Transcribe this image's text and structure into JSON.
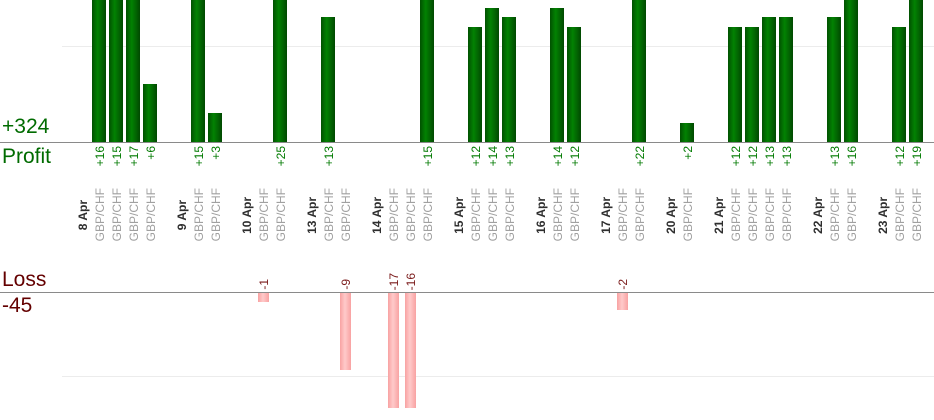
{
  "chart_data": {
    "type": "bar",
    "layout": "dual-section daily trade results: profit bars above upper axis, loss bars below lower axis, shared date/instrument category band, gridlines on",
    "sections": [
      {
        "id": "profit",
        "label": "Profit",
        "total_label": "+324",
        "total_value": 324,
        "bar_color": "#028202",
        "text_color": "#006b00",
        "gridline_value_estimate": 10
      },
      {
        "id": "loss",
        "label": "Loss",
        "total_label": "-45",
        "total_value": -45,
        "bar_color": "#ffcaca",
        "text_color": "#640000",
        "gridline_value_estimate": -10
      }
    ],
    "groups": [
      {
        "date": "8 Apr",
        "trades": [
          {
            "instrument": "GBP/CHF",
            "value": 16,
            "label": "+16"
          },
          {
            "instrument": "GBP/CHF",
            "value": 15,
            "label": "+15"
          },
          {
            "instrument": "GBP/CHF",
            "value": 17,
            "label": "+17"
          },
          {
            "instrument": "GBP/CHF",
            "value": 6,
            "label": "+6"
          }
        ]
      },
      {
        "date": "9 Apr",
        "trades": [
          {
            "instrument": "GBP/CHF",
            "value": 15,
            "label": "+15"
          },
          {
            "instrument": "GBP/CHF",
            "value": 3,
            "label": "+3"
          }
        ]
      },
      {
        "date": "10 Apr",
        "trades": [
          {
            "instrument": "GBP/CHF",
            "value": -1,
            "label": "-1"
          },
          {
            "instrument": "GBP/CHF",
            "value": 25,
            "label": "+25"
          }
        ]
      },
      {
        "date": "13 Apr",
        "trades": [
          {
            "instrument": "GBP/CHF",
            "value": 13,
            "label": "+13"
          },
          {
            "instrument": "GBP/CHF",
            "value": -9,
            "label": "-9"
          }
        ]
      },
      {
        "date": "14 Apr",
        "trades": [
          {
            "instrument": "GBP/CHF",
            "value": -17,
            "label": "-17"
          },
          {
            "instrument": "GBP/CHF",
            "value": -16,
            "label": "-16"
          },
          {
            "instrument": "GBP/CHF",
            "value": 15,
            "label": "+15"
          }
        ]
      },
      {
        "date": "15 Apr",
        "trades": [
          {
            "instrument": "GBP/CHF",
            "value": 12,
            "label": "+12"
          },
          {
            "instrument": "GBP/CHF",
            "value": 14,
            "label": "+14"
          },
          {
            "instrument": "GBP/CHF",
            "value": 13,
            "label": "+13"
          }
        ]
      },
      {
        "date": "16 Apr",
        "trades": [
          {
            "instrument": "GBP/CHF",
            "value": 14,
            "label": "+14"
          },
          {
            "instrument": "GBP/CHF",
            "value": 12,
            "label": "+12"
          }
        ]
      },
      {
        "date": "17 Apr",
        "trades": [
          {
            "instrument": "GBP/CHF",
            "value": -2,
            "label": "-2"
          },
          {
            "instrument": "GBP/CHF",
            "value": 22,
            "label": "+22"
          }
        ]
      },
      {
        "date": "20 Apr",
        "trades": [
          {
            "instrument": "GBP/CHF",
            "value": 2,
            "label": "+2"
          }
        ]
      },
      {
        "date": "21 Apr",
        "trades": [
          {
            "instrument": "GBP/CHF",
            "value": 12,
            "label": "+12"
          },
          {
            "instrument": "GBP/CHF",
            "value": 12,
            "label": "+12"
          },
          {
            "instrument": "GBP/CHF",
            "value": 13,
            "label": "+13"
          },
          {
            "instrument": "GBP/CHF",
            "value": 13,
            "label": "+13"
          }
        ]
      },
      {
        "date": "22 Apr",
        "trades": [
          {
            "instrument": "GBP/CHF",
            "value": 13,
            "label": "+13"
          },
          {
            "instrument": "GBP/CHF",
            "value": 16,
            "label": "+16"
          }
        ]
      },
      {
        "date": "23 Apr",
        "trades": [
          {
            "instrument": "GBP/CHF",
            "value": 12,
            "label": "+12"
          },
          {
            "instrument": "GBP/CHF",
            "value": 19,
            "label": "+19"
          }
        ]
      }
    ],
    "colors": {
      "profit_bar_mid": "#028202",
      "profit_bar_edge": "#015101",
      "loss_bar_mid": "#ffcaca",
      "loss_bar_edge": "#f8a2a2",
      "profit_text": "#006b00",
      "profit_value_text": "#007a00",
      "loss_text": "#640000",
      "loss_value_text": "#7a1a1a",
      "date_text": "#2e2e2e",
      "instrument_text": "#a0a0a0",
      "axis_line": "#8a8a8a",
      "gridline": "#ececec"
    }
  }
}
